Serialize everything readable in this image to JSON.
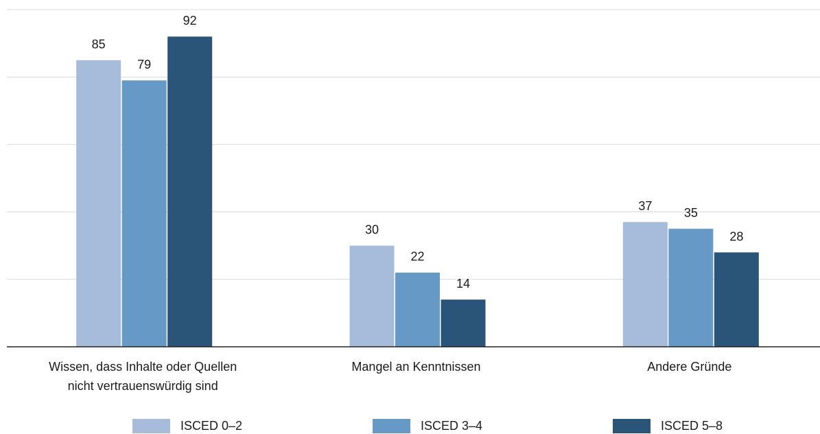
{
  "chart_data": {
    "type": "bar",
    "categories": [
      "Wissen, dass Inhalte oder Quellen\nnicht vertrauenswürdig sind",
      "Mangel an Kenntnissen",
      "Andere Gründe"
    ],
    "series": [
      {
        "name": "ISCED 0–2",
        "color": "#a7bbdb",
        "values": [
          85,
          30,
          37
        ]
      },
      {
        "name": "ISCED 3–4",
        "color": "#6799c6",
        "values": [
          79,
          22,
          35
        ]
      },
      {
        "name": "ISCED 5–8",
        "color": "#2b5479",
        "values": [
          92,
          14,
          28
        ]
      }
    ],
    "ylim": [
      0,
      100
    ],
    "yticks": [
      0,
      20,
      40,
      60,
      80,
      100
    ],
    "grid": true,
    "legend": "bottom"
  }
}
